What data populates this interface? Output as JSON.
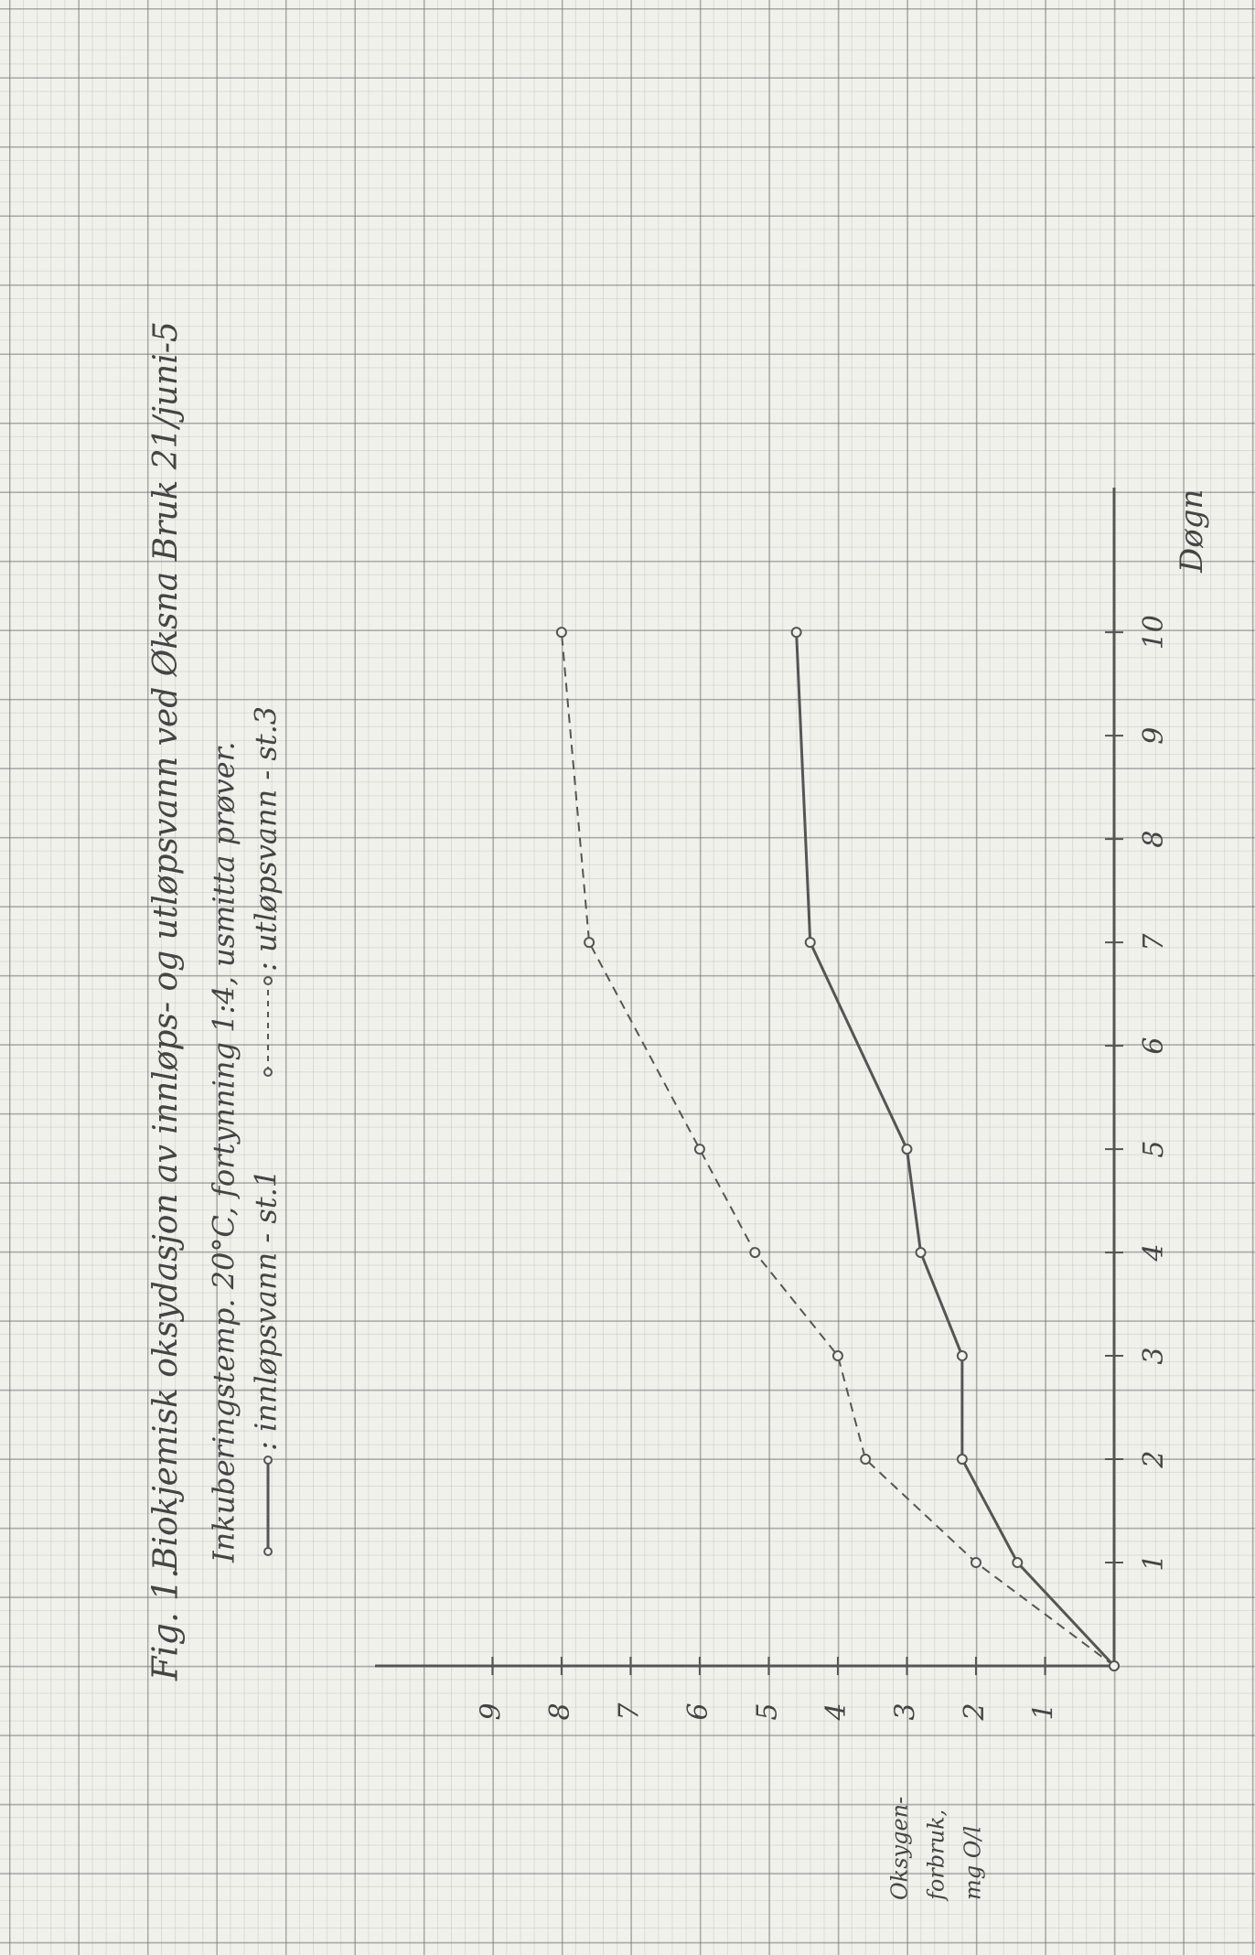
{
  "chart_data": {
    "type": "line",
    "figure_label": "Fig. 1.",
    "title": "Biokjemisk oksydasjon av innløps- og utløpsvann ved Øksna Bruk 21/juni-5",
    "subtitle": "Inkuberingstemp. 20°C, fortynning 1:4, usmitta prøver.",
    "xlabel": "Døgn",
    "ylabel_lines": [
      "Oksygen-",
      "forbruk,",
      "mg O/l"
    ],
    "x": [
      0,
      1,
      2,
      3,
      4,
      5,
      7,
      10
    ],
    "xlim": [
      0,
      11.4
    ],
    "ylim": [
      0,
      10.7
    ],
    "xticks": [
      1,
      2,
      3,
      4,
      5,
      6,
      7,
      8,
      9,
      10
    ],
    "yticks": [
      1,
      2,
      3,
      4,
      5,
      6,
      7,
      8,
      9
    ],
    "series": [
      {
        "name": ": innløpsvann - st.1",
        "color": "#555555",
        "line_style": "solid",
        "values": [
          0,
          1.4,
          2.2,
          2.2,
          2.8,
          3.0,
          4.4,
          4.6
        ]
      },
      {
        "name": ": utløpsvann - st.3",
        "color": "#555555",
        "line_style": "dashed",
        "values": [
          0,
          2.0,
          3.6,
          4.0,
          5.2,
          6.0,
          7.6,
          8.0
        ]
      }
    ],
    "grid": true
  }
}
